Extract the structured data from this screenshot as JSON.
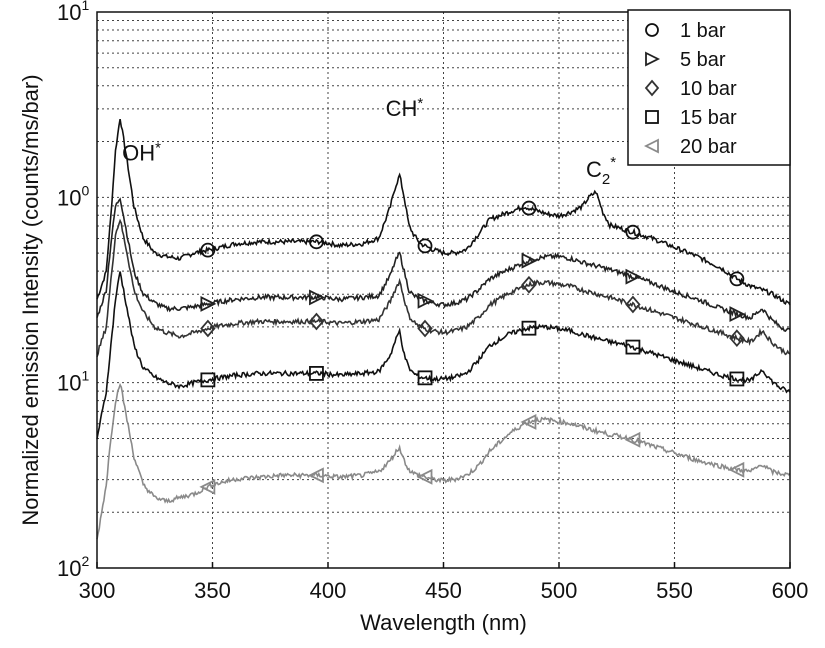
{
  "chart_data": {
    "type": "line",
    "title": "",
    "xlabel": "Wavelength (nm)",
    "ylabel": "Normalized emission Intensity (counts/ms/bar)",
    "xlim": [
      300,
      600
    ],
    "ylim_log10": [
      -2,
      1
    ],
    "y_scale": "log",
    "grid": true,
    "legend_position": "top-right",
    "x_ticks": [
      "300",
      "350",
      "400",
      "450",
      "500",
      "550",
      "600"
    ],
    "y_ticks": [
      {
        "base": "10",
        "exp": "2"
      },
      {
        "base": "10",
        "exp": "1"
      },
      {
        "base": "10",
        "exp": "0"
      },
      {
        "base": "10",
        "exp": "1"
      }
    ],
    "annotations": [
      {
        "base": "OH",
        "sup": "*",
        "at_x": 310
      },
      {
        "base": "CH",
        "sup": "*",
        "at_x": 431
      },
      {
        "base": "C",
        "sub": "2",
        "sup": "*",
        "at_x": 516
      }
    ],
    "series": [
      {
        "name": "1 bar",
        "marker": "circle",
        "color": "#111111",
        "x": [
          300,
          304,
          306,
          308,
          310,
          313,
          316,
          320,
          325,
          330,
          336,
          342,
          350,
          360,
          370,
          380,
          390,
          397,
          405,
          415,
          422,
          427,
          429,
          431,
          433,
          435,
          437,
          440,
          445,
          450,
          455,
          460,
          465,
          470,
          478,
          485,
          490,
          495,
          500,
          505,
          510,
          513,
          516,
          519,
          522,
          530,
          540,
          550,
          560,
          570,
          577,
          583,
          588,
          592,
          596,
          600
        ],
        "logy": [
          -0.55,
          -0.4,
          -0.1,
          0.25,
          0.43,
          0.2,
          -0.05,
          -0.22,
          -0.3,
          -0.32,
          -0.33,
          -0.3,
          -0.28,
          -0.25,
          -0.24,
          -0.24,
          -0.24,
          -0.24,
          -0.26,
          -0.25,
          -0.22,
          -0.05,
          0.05,
          0.12,
          0.0,
          -0.15,
          -0.2,
          -0.25,
          -0.28,
          -0.3,
          -0.3,
          -0.28,
          -0.2,
          -0.12,
          -0.08,
          -0.05,
          -0.07,
          -0.09,
          -0.1,
          -0.08,
          -0.05,
          0.0,
          0.03,
          -0.08,
          -0.15,
          -0.18,
          -0.22,
          -0.27,
          -0.32,
          -0.38,
          -0.44,
          -0.48,
          -0.5,
          -0.52,
          -0.55,
          -0.58
        ]
      },
      {
        "name": "5 bar",
        "marker": "triangle-right",
        "color": "#222222",
        "x": [
          300,
          304,
          306,
          308,
          310,
          313,
          316,
          320,
          325,
          330,
          336,
          342,
          350,
          360,
          370,
          380,
          390,
          397,
          405,
          415,
          422,
          427,
          429,
          431,
          433,
          435,
          437,
          440,
          445,
          450,
          455,
          460,
          465,
          470,
          478,
          485,
          490,
          495,
          500,
          505,
          510,
          516,
          522,
          530,
          540,
          550,
          560,
          570,
          577,
          583,
          588,
          592,
          596,
          600
        ],
        "logy": [
          -0.65,
          -0.5,
          -0.25,
          -0.05,
          0.0,
          -0.2,
          -0.4,
          -0.52,
          -0.57,
          -0.6,
          -0.6,
          -0.59,
          -0.57,
          -0.55,
          -0.54,
          -0.54,
          -0.54,
          -0.54,
          -0.55,
          -0.54,
          -0.53,
          -0.42,
          -0.35,
          -0.3,
          -0.4,
          -0.5,
          -0.53,
          -0.55,
          -0.57,
          -0.58,
          -0.57,
          -0.55,
          -0.5,
          -0.44,
          -0.39,
          -0.35,
          -0.33,
          -0.32,
          -0.32,
          -0.33,
          -0.35,
          -0.37,
          -0.39,
          -0.42,
          -0.46,
          -0.51,
          -0.55,
          -0.6,
          -0.63,
          -0.65,
          -0.6,
          -0.66,
          -0.7,
          -0.72
        ]
      },
      {
        "name": "10 bar",
        "marker": "diamond",
        "color": "#333333",
        "x": [
          300,
          304,
          306,
          308,
          310,
          313,
          316,
          320,
          325,
          330,
          336,
          342,
          350,
          360,
          370,
          380,
          390,
          397,
          405,
          415,
          422,
          427,
          429,
          431,
          433,
          435,
          437,
          440,
          445,
          450,
          455,
          460,
          465,
          470,
          478,
          485,
          490,
          495,
          500,
          505,
          510,
          516,
          522,
          530,
          540,
          550,
          560,
          570,
          577,
          583,
          588,
          592,
          596,
          600
        ],
        "logy": [
          -0.85,
          -0.7,
          -0.45,
          -0.2,
          -0.12,
          -0.3,
          -0.5,
          -0.62,
          -0.7,
          -0.73,
          -0.75,
          -0.73,
          -0.7,
          -0.68,
          -0.67,
          -0.67,
          -0.67,
          -0.67,
          -0.68,
          -0.67,
          -0.66,
          -0.56,
          -0.5,
          -0.45,
          -0.55,
          -0.64,
          -0.67,
          -0.7,
          -0.72,
          -0.73,
          -0.72,
          -0.7,
          -0.65,
          -0.58,
          -0.52,
          -0.48,
          -0.46,
          -0.46,
          -0.47,
          -0.48,
          -0.5,
          -0.52,
          -0.54,
          -0.57,
          -0.61,
          -0.65,
          -0.69,
          -0.73,
          -0.76,
          -0.78,
          -0.72,
          -0.78,
          -0.82,
          -0.85
        ]
      },
      {
        "name": "15 bar",
        "marker": "square",
        "color": "#111111",
        "x": [
          300,
          304,
          306,
          308,
          310,
          313,
          316,
          320,
          325,
          330,
          336,
          342,
          350,
          360,
          370,
          380,
          390,
          397,
          405,
          415,
          422,
          427,
          429,
          431,
          433,
          435,
          437,
          440,
          445,
          450,
          455,
          460,
          465,
          470,
          478,
          485,
          490,
          495,
          500,
          505,
          510,
          516,
          522,
          530,
          540,
          550,
          560,
          570,
          577,
          583,
          588,
          592,
          596,
          600
        ],
        "logy": [
          -1.3,
          -1.05,
          -0.8,
          -0.55,
          -0.4,
          -0.6,
          -0.8,
          -0.92,
          -0.97,
          -1.0,
          -1.02,
          -1.0,
          -0.98,
          -0.96,
          -0.95,
          -0.95,
          -0.95,
          -0.95,
          -0.96,
          -0.95,
          -0.94,
          -0.85,
          -0.78,
          -0.72,
          -0.85,
          -0.92,
          -0.95,
          -0.97,
          -0.98,
          -0.98,
          -0.97,
          -0.95,
          -0.88,
          -0.8,
          -0.74,
          -0.71,
          -0.7,
          -0.7,
          -0.71,
          -0.72,
          -0.74,
          -0.76,
          -0.78,
          -0.8,
          -0.84,
          -0.88,
          -0.92,
          -0.96,
          -0.98,
          -0.99,
          -0.93,
          -0.99,
          -1.03,
          -1.05
        ]
      },
      {
        "name": "20 bar",
        "marker": "triangle-left",
        "color": "#8a8a8a",
        "x": [
          300,
          304,
          306,
          308,
          310,
          313,
          316,
          320,
          325,
          330,
          336,
          342,
          350,
          360,
          370,
          380,
          390,
          397,
          405,
          415,
          422,
          427,
          429,
          431,
          433,
          435,
          437,
          440,
          445,
          450,
          455,
          460,
          465,
          470,
          478,
          485,
          490,
          495,
          500,
          505,
          510,
          516,
          522,
          530,
          540,
          550,
          560,
          570,
          577,
          583,
          588,
          592,
          596,
          600
        ],
        "logy": [
          -1.85,
          -1.55,
          -1.3,
          -1.1,
          -1.0,
          -1.2,
          -1.4,
          -1.55,
          -1.62,
          -1.64,
          -1.62,
          -1.6,
          -1.55,
          -1.52,
          -1.51,
          -1.5,
          -1.5,
          -1.5,
          -1.51,
          -1.5,
          -1.48,
          -1.42,
          -1.38,
          -1.35,
          -1.42,
          -1.47,
          -1.49,
          -1.5,
          -1.52,
          -1.53,
          -1.52,
          -1.5,
          -1.45,
          -1.37,
          -1.28,
          -1.22,
          -1.2,
          -1.2,
          -1.21,
          -1.22,
          -1.24,
          -1.26,
          -1.28,
          -1.3,
          -1.34,
          -1.38,
          -1.42,
          -1.45,
          -1.47,
          -1.48,
          -1.44,
          -1.48,
          -1.49,
          -1.5
        ]
      }
    ],
    "markers": {
      "1 bar": [
        348,
        395,
        442,
        487,
        532,
        577
      ],
      "5 bar": [
        348,
        395,
        442,
        487,
        532,
        577
      ],
      "10 bar": [
        348,
        395,
        442,
        487,
        532,
        577
      ],
      "15 bar": [
        348,
        395,
        442,
        487,
        532,
        577
      ],
      "20 bar": [
        348,
        395,
        442,
        487,
        532,
        577
      ]
    }
  }
}
